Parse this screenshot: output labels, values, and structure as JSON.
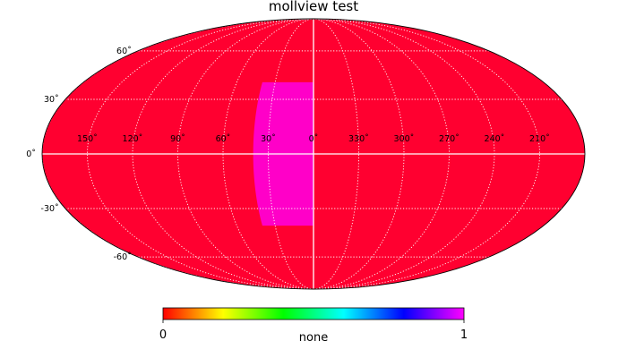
{
  "chart_data": {
    "type": "heatmap",
    "title": "mollview test",
    "projection": "mollweide",
    "background_value": 0,
    "patch": {
      "value": 1,
      "lon_range": [
        0,
        40
      ],
      "lat_range": [
        -40,
        40
      ]
    },
    "longitude_labels": [
      "150˚",
      "120˚",
      "90˚",
      "60˚",
      "30˚",
      "0˚",
      "330˚",
      "300˚",
      "270˚",
      "240˚",
      "210˚"
    ],
    "longitude_values": [
      150,
      120,
      90,
      60,
      30,
      0,
      330,
      300,
      270,
      240,
      210
    ],
    "latitude_labels": [
      "60˚",
      "30˚",
      "0˚",
      "-30˚",
      "-60˚"
    ],
    "latitude_values": [
      60,
      30,
      0,
      -30,
      -60
    ],
    "graticule": true,
    "colormap": [
      "#ff0000",
      "#ff8000",
      "#ffff00",
      "#80ff00",
      "#00ff00",
      "#00ff80",
      "#00ffff",
      "#0080ff",
      "#0000ff",
      "#8000ff",
      "#ff00ff"
    ],
    "map_colors": {
      "low": "#ff0030",
      "high": "#ff00c8"
    },
    "colorbar": {
      "min_label": "0",
      "max_label": "1",
      "label": "none"
    }
  }
}
